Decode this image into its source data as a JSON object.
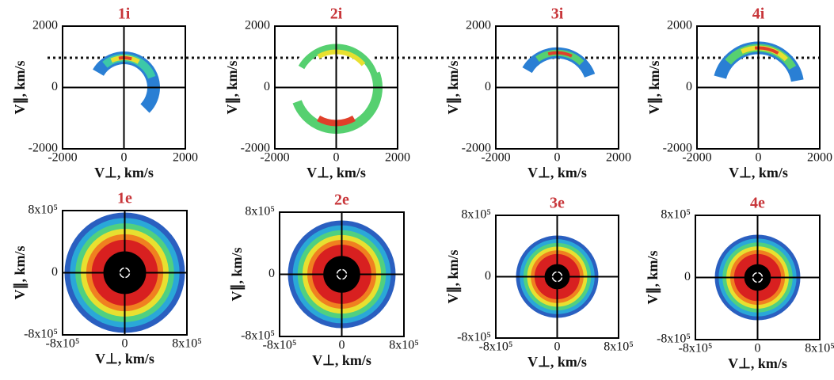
{
  "panels": [
    {
      "title": "1i",
      "y_label": "V∥, km/s",
      "x_label": "V⊥, km/s",
      "y_ticks": [
        "2000",
        "0",
        "-2000"
      ],
      "x_ticks": [
        "-2000",
        "0",
        "2000"
      ]
    },
    {
      "title": "2i",
      "y_label": "V∥, km/s",
      "x_label": "V⊥, km/s",
      "y_ticks": [
        "2000",
        "0",
        "-2000"
      ],
      "x_ticks": [
        "-2000",
        "0",
        "2000"
      ]
    },
    {
      "title": "3i",
      "y_label": "V∥, km/s",
      "x_label": "V⊥, km/s",
      "y_ticks": [
        "2000",
        "0",
        "-2000"
      ],
      "x_ticks": [
        "-2000",
        "0",
        "2000"
      ]
    },
    {
      "title": "4i",
      "y_label": "V∥, km/s",
      "x_label": "V⊥, km/s",
      "y_ticks": [
        "2000",
        "0",
        "-2000"
      ],
      "x_ticks": [
        "-2000",
        "0",
        "2000"
      ]
    },
    {
      "title": "1e",
      "y_label": "V∥, km/s",
      "x_label": "V⊥, km/s",
      "y_ticks": [
        "8x10⁵",
        "0",
        "-8x10⁵"
      ],
      "x_ticks": [
        "-8x10⁵",
        "0",
        "8x10⁵"
      ]
    },
    {
      "title": "2e",
      "y_label": "V∥, km/s",
      "x_label": "V⊥, km/s",
      "y_ticks": [
        "8x10⁵",
        "0",
        "-8x10⁵"
      ],
      "x_ticks": [
        "-8x10⁵",
        "0",
        "8x10⁵"
      ]
    },
    {
      "title": "3e",
      "y_label": "V∥, km/s",
      "x_label": "V⊥, km/s",
      "y_ticks": [
        "8x10⁵",
        "0",
        "-8x10⁵"
      ],
      "x_ticks": [
        "-8x10⁵",
        "0",
        "8x10⁵"
      ]
    },
    {
      "title": "4e",
      "y_label": "V∥, km/s",
      "x_label": "V⊥, km/s",
      "y_ticks": [
        "8x10⁵",
        "0",
        "-8x10⁵"
      ],
      "x_ticks": [
        "-8x10⁵",
        "0",
        "8x10⁵"
      ]
    }
  ]
}
